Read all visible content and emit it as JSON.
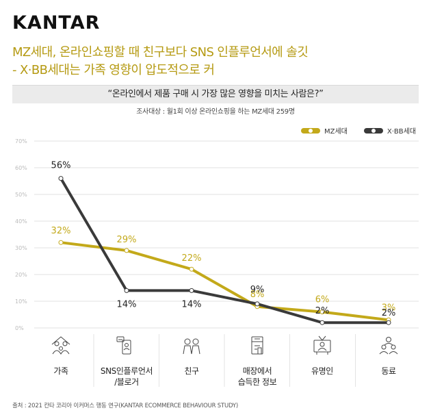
{
  "brand": {
    "logo_text": "KANTAR"
  },
  "headline": {
    "line1": "MZ세대, 온라인쇼핑할 때 친구보다 SNS 인플루언서에 솔깃",
    "line2": "- X·BB세대는 가족 영향이 압도적으로 커"
  },
  "question": "“온라인에서 제품 구매 시 가장 많은 영향을 미치는 사람은?”",
  "survey_note": "조사대상 : 월1회 이상 온라인쇼핑을 하는 MZ세대 259명",
  "source": "출처 : 2021 칸타 코리아 이커머스 행동 연구(KANTAR ECOMMERCE BEHAVIOUR STUDY)",
  "colors": {
    "mz": "#c3a91a",
    "xbb": "#3a3a3a",
    "grid": "#e2e2e2",
    "tick": "#bbbbbb"
  },
  "category_icons": [
    "family-icon",
    "influencer-phone-icon",
    "friends-icon",
    "store-info-icon",
    "celebrity-tv-icon",
    "colleagues-icon"
  ],
  "chart_data": {
    "type": "line",
    "categories": [
      "가족",
      "SNS인플루언서\n/블로거",
      "친구",
      "매장에서\n습득한 정보",
      "유명인",
      "동료"
    ],
    "ylim": [
      0,
      70
    ],
    "yticks": [
      "0%",
      "10%",
      "20%",
      "30%",
      "40%",
      "50%",
      "60%",
      "70%"
    ],
    "grid": true,
    "legend_position": "top-right",
    "series": [
      {
        "name": "MZ세대",
        "values": [
          32,
          29,
          22,
          8,
          6,
          3
        ],
        "labels": [
          "32%",
          "29%",
          "22%",
          "8%",
          "6%",
          "3%"
        ]
      },
      {
        "name": "X·BB세대",
        "values": [
          56,
          14,
          14,
          9,
          2,
          2
        ],
        "labels": [
          "56%",
          "14%",
          "14%",
          "9%",
          "2%",
          "2%"
        ]
      }
    ]
  }
}
